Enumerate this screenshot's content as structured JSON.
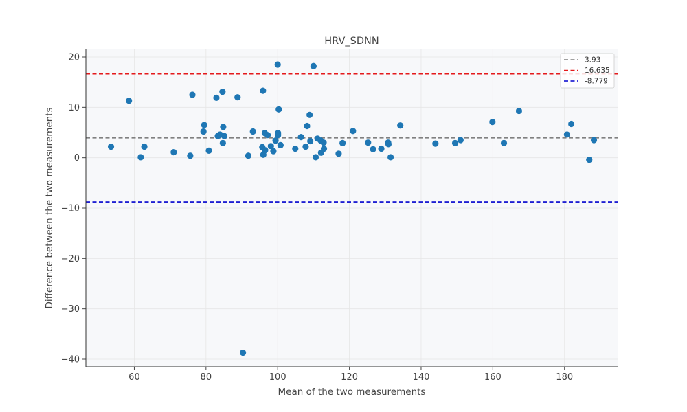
{
  "chart_data": {
    "type": "scatter",
    "title": "HRV_SDNN",
    "xlabel": "Mean of the two measurements",
    "ylabel": "Difference between the two measurements",
    "xlim": [
      46.5,
      195
    ],
    "ylim": [
      -41.5,
      21.5
    ],
    "xticks": [
      60,
      80,
      100,
      120,
      140,
      160,
      180
    ],
    "yticks": [
      -40,
      -30,
      -20,
      -10,
      0,
      10,
      20
    ],
    "ytick_labels": [
      "−40",
      "−30",
      "−20",
      "−10",
      "0",
      "10",
      "20"
    ],
    "grid": true,
    "legend_position": "top-right",
    "point_color": "#1f77b4",
    "background_color": "#f7f8fa",
    "hlines": [
      {
        "label": "3.93",
        "y": 3.93,
        "color": "#808080"
      },
      {
        "label": "16.635",
        "y": 16.635,
        "color": "#e41a1c"
      },
      {
        "label": "-8.779",
        "y": -8.779,
        "color": "#0000cd"
      }
    ],
    "points": [
      {
        "x": 53.5,
        "y": 2.2
      },
      {
        "x": 58.5,
        "y": 11.3
      },
      {
        "x": 61.8,
        "y": 0.1
      },
      {
        "x": 62.8,
        "y": 2.2
      },
      {
        "x": 71.0,
        "y": 1.1
      },
      {
        "x": 75.6,
        "y": 0.4
      },
      {
        "x": 76.2,
        "y": 12.5
      },
      {
        "x": 79.3,
        "y": 5.2
      },
      {
        "x": 79.5,
        "y": 6.5
      },
      {
        "x": 80.8,
        "y": 1.4
      },
      {
        "x": 82.9,
        "y": 11.9
      },
      {
        "x": 83.3,
        "y": 4.3
      },
      {
        "x": 83.9,
        "y": 4.6
      },
      {
        "x": 84.6,
        "y": 13.1
      },
      {
        "x": 84.7,
        "y": 2.9
      },
      {
        "x": 84.8,
        "y": 6.1
      },
      {
        "x": 85.1,
        "y": 4.3
      },
      {
        "x": 88.8,
        "y": 12.0
      },
      {
        "x": 90.3,
        "y": -38.7
      },
      {
        "x": 91.8,
        "y": 0.4
      },
      {
        "x": 93.1,
        "y": 5.2
      },
      {
        "x": 95.7,
        "y": 2.1
      },
      {
        "x": 95.9,
        "y": 13.3
      },
      {
        "x": 96.0,
        "y": 0.6
      },
      {
        "x": 96.4,
        "y": 4.9
      },
      {
        "x": 96.5,
        "y": 1.5
      },
      {
        "x": 97.2,
        "y": 4.5
      },
      {
        "x": 98.1,
        "y": 2.3
      },
      {
        "x": 98.8,
        "y": 1.3
      },
      {
        "x": 99.4,
        "y": 3.4
      },
      {
        "x": 100.0,
        "y": 18.5
      },
      {
        "x": 100.1,
        "y": 4.9
      },
      {
        "x": 100.1,
        "y": 4.5
      },
      {
        "x": 100.3,
        "y": 9.6
      },
      {
        "x": 100.8,
        "y": 2.5
      },
      {
        "x": 104.9,
        "y": 1.8
      },
      {
        "x": 106.5,
        "y": 4.1
      },
      {
        "x": 107.8,
        "y": 2.2
      },
      {
        "x": 108.2,
        "y": 6.3
      },
      {
        "x": 108.9,
        "y": 8.5
      },
      {
        "x": 109.1,
        "y": 3.3
      },
      {
        "x": 110.0,
        "y": 18.2
      },
      {
        "x": 110.6,
        "y": 0.1
      },
      {
        "x": 111.1,
        "y": 3.8
      },
      {
        "x": 112.0,
        "y": 3.4
      },
      {
        "x": 112.1,
        "y": 1.0
      },
      {
        "x": 112.8,
        "y": 3.0
      },
      {
        "x": 112.9,
        "y": 1.8
      },
      {
        "x": 117.0,
        "y": 0.8
      },
      {
        "x": 118.1,
        "y": 2.9
      },
      {
        "x": 121.0,
        "y": 5.3
      },
      {
        "x": 125.2,
        "y": 3.0
      },
      {
        "x": 126.6,
        "y": 1.7
      },
      {
        "x": 128.9,
        "y": 1.8
      },
      {
        "x": 130.8,
        "y": 3.0
      },
      {
        "x": 130.9,
        "y": 2.7
      },
      {
        "x": 131.5,
        "y": 0.1
      },
      {
        "x": 134.2,
        "y": 6.4
      },
      {
        "x": 144.0,
        "y": 2.8
      },
      {
        "x": 149.5,
        "y": 2.9
      },
      {
        "x": 151.0,
        "y": 3.5
      },
      {
        "x": 159.9,
        "y": 7.1
      },
      {
        "x": 163.1,
        "y": 2.9
      },
      {
        "x": 167.3,
        "y": 9.3
      },
      {
        "x": 180.7,
        "y": 4.6
      },
      {
        "x": 181.9,
        "y": 6.7
      },
      {
        "x": 186.9,
        "y": -0.4
      },
      {
        "x": 188.2,
        "y": 3.5
      }
    ]
  }
}
